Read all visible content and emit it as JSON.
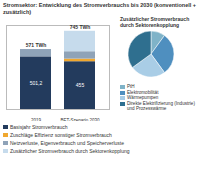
{
  "chart_data": [
    {
      "type": "bar",
      "title": "Stromsektor: Entwicklung des Stromverbrauchs bis 2030 (konventionell + zusätzlich)",
      "stacked": true,
      "categories": [
        "2019",
        "BET-Szenario 2030"
      ],
      "series": [
        {
          "name": "Basisjahr Stromverbrauch",
          "color": "#233b5d",
          "values": [
            501.2,
            455
          ],
          "value_labels": [
            "501,2",
            "455"
          ],
          "data_labels": true
        },
        {
          "name": "Zuschläge Effizienz sonstiger Stromverbrauch",
          "color": "#f0a830",
          "values": [
            0,
            25
          ]
        },
        {
          "name": "Netzverluste, Eigenverbrauch und Speicherverluste",
          "color": "#8fa3b8",
          "values": [
            69.8,
            70
          ]
        },
        {
          "name": "Zusätzlicher Stromverbrauch durch Sektorenkopplung",
          "color": "#c6dbec",
          "values": [
            0,
            195
          ]
        }
      ],
      "totals": [
        571,
        745
      ],
      "total_labels": [
        "571 TWh",
        "745 TWh"
      ],
      "ylim": [
        0,
        800
      ],
      "yticks": [],
      "tick_labels": "x"
    },
    {
      "type": "pie",
      "title": "Zusätzlicher Stromverbrauch durch Sektorenkopplung",
      "categories": [
        "PtH",
        "Elektromobilität",
        "Wärmepumpen",
        "Direkte Elektrifizierung (Industrie) und Prozesswärme"
      ],
      "values": [
        10,
        30,
        25,
        35
      ],
      "colors": [
        "#7fb3c8",
        "#4f8fbf",
        "#a9cde6",
        "#2f6f8f"
      ]
    }
  ]
}
